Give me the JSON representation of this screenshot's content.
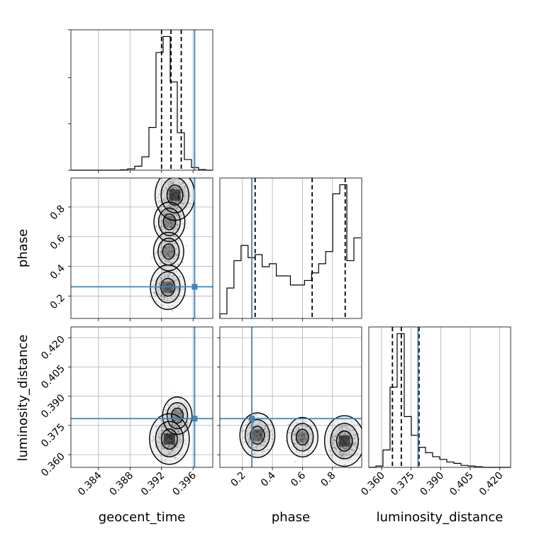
{
  "chart_data": {
    "type": "corner",
    "parameters": [
      "geocent_time",
      "phase",
      "luminosity_distance"
    ],
    "axis_labels": {
      "geocent_time": "geocent_time",
      "phase": "phase",
      "luminosity_distance": "luminosity_distance"
    },
    "ranges": {
      "geocent_time": [
        0.3805,
        0.3985
      ],
      "phase": [
        0.05,
        0.995
      ],
      "luminosity_distance": [
        0.3535,
        0.4255
      ]
    },
    "ticks": {
      "geocent_time": {
        "values": [
          0.384,
          0.388,
          0.392,
          0.396
        ],
        "labels": [
          "0.384",
          "0.388",
          "0.392",
          "0.396"
        ]
      },
      "phase": {
        "values": [
          0.2,
          0.4,
          0.6,
          0.8
        ],
        "labels": [
          "0.2",
          "0.4",
          "0.6",
          "0.8"
        ]
      },
      "luminosity_distance": {
        "values": [
          0.36,
          0.375,
          0.39,
          0.405,
          0.42
        ],
        "labels": [
          "0.360",
          "0.375",
          "0.390",
          "0.405",
          "0.420"
        ]
      }
    },
    "truths": {
      "geocent_time": 0.3962,
      "phase": 0.263,
      "luminosity_distance": 0.3785
    },
    "quantiles": {
      "geocent_time": [
        0.392,
        0.3932,
        0.3945
      ],
      "phase": [
        0.285,
        0.665,
        0.885
      ],
      "luminosity_distance": [
        0.3655,
        0.37,
        0.379
      ]
    },
    "histograms": {
      "geocent_time": {
        "edges": [
          0.3805,
          0.3814,
          0.3823,
          0.3832,
          0.3841,
          0.385,
          0.3859,
          0.3868,
          0.3877,
          0.3886,
          0.3895,
          0.3904,
          0.3913,
          0.3922,
          0.3931,
          0.394,
          0.3949,
          0.3958,
          0.3967,
          0.3976,
          0.3985
        ],
        "counts": [
          0,
          0,
          0,
          0,
          0,
          0,
          0,
          0.3,
          1,
          3,
          10,
          32,
          88,
          100,
          66,
          28,
          8,
          2,
          0.5,
          0
        ]
      },
      "phase": {
        "edges": [
          0.05,
          0.097,
          0.144,
          0.191,
          0.238,
          0.285,
          0.332,
          0.379,
          0.426,
          0.473,
          0.52,
          0.567,
          0.614,
          0.661,
          0.708,
          0.755,
          0.802,
          0.849,
          0.896,
          0.943,
          0.99
        ],
        "counts": [
          3,
          20,
          38,
          48,
          40,
          42,
          34,
          36,
          28,
          28,
          22,
          22,
          25,
          30,
          36,
          44,
          82,
          88,
          38,
          53
        ]
      },
      "luminosity_distance": {
        "edges": [
          0.3535,
          0.3571,
          0.3607,
          0.3643,
          0.3679,
          0.3715,
          0.3751,
          0.3787,
          0.3823,
          0.3859,
          0.3895,
          0.3931,
          0.3967,
          0.4003,
          0.4039,
          0.4075,
          0.4111,
          0.4147,
          0.4183,
          0.4219,
          0.4255
        ],
        "counts": [
          0,
          1,
          13,
          60,
          100,
          38,
          24,
          15,
          11,
          8,
          6,
          4,
          3,
          1.5,
          1,
          0.5,
          0,
          0,
          0,
          0
        ]
      }
    },
    "density_cores": {
      "phase_vs_geocent_time": [
        {
          "x": 0.3937,
          "y": 0.88,
          "weight": 1.0
        },
        {
          "x": 0.393,
          "y": 0.7,
          "weight": 0.45
        },
        {
          "x": 0.3929,
          "y": 0.5,
          "weight": 0.4
        },
        {
          "x": 0.3928,
          "y": 0.26,
          "weight": 0.7
        }
      ],
      "luminosity_distance_vs_geocent_time": [
        {
          "x": 0.393,
          "y": 0.368,
          "weight": 1.0
        },
        {
          "x": 0.394,
          "y": 0.38,
          "weight": 0.35
        }
      ],
      "luminosity_distance_vs_phase": [
        {
          "x": 0.3,
          "y": 0.37,
          "weight": 0.7
        },
        {
          "x": 0.88,
          "y": 0.367,
          "weight": 1.0
        },
        {
          "x": 0.6,
          "y": 0.369,
          "weight": 0.45
        }
      ]
    },
    "grid": true,
    "colors": {
      "truth": "#4682b4",
      "hist": "#000000",
      "quantile": "#000000",
      "grid": "#b0b0b0",
      "density": "#000000"
    }
  }
}
